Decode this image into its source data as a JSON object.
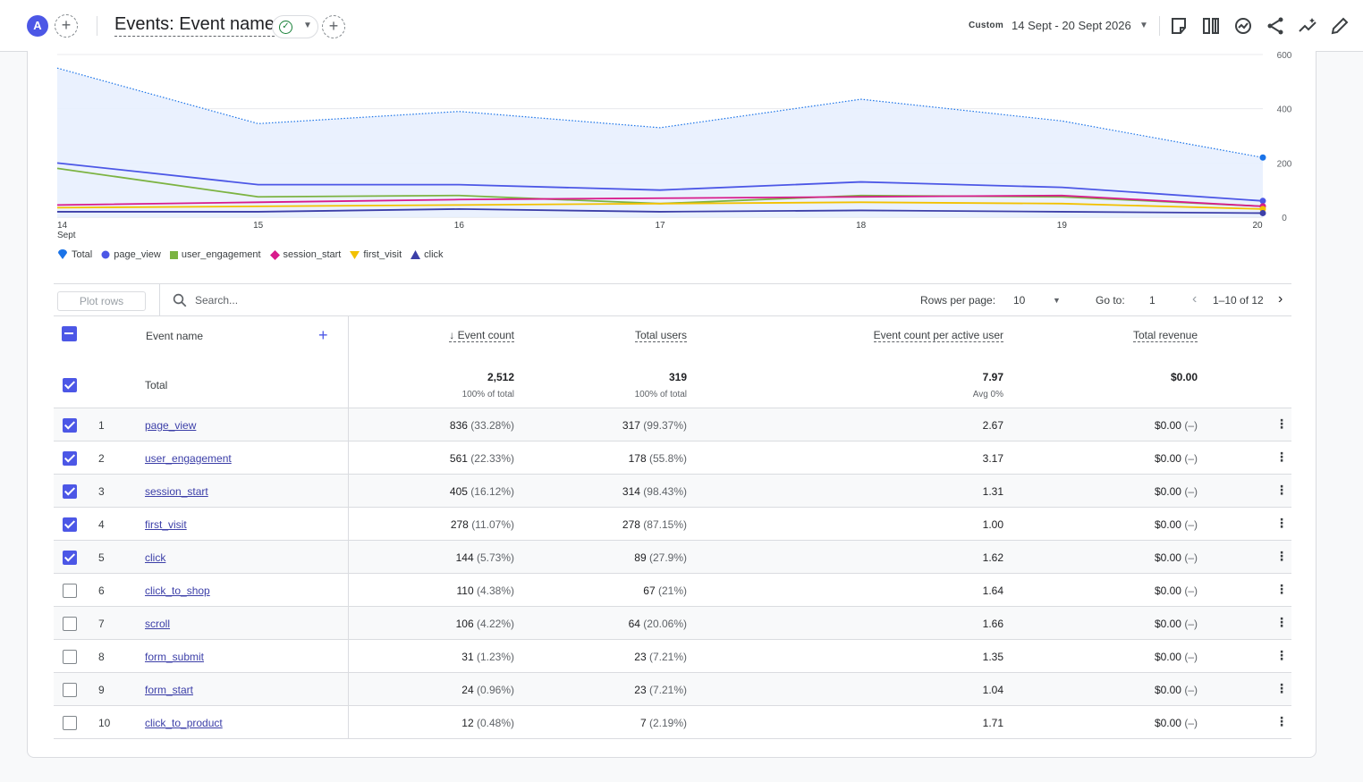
{
  "header": {
    "avatar_letter": "A",
    "title": "Events: Event name",
    "custom_label": "Custom",
    "date_range": "14 Sept - 20 Sept 2026"
  },
  "chart_data": {
    "type": "line",
    "x": [
      "14",
      "15",
      "16",
      "17",
      "18",
      "19",
      "20"
    ],
    "x_sub_label": "Sept",
    "ylim": [
      0,
      600
    ],
    "y_ticks": [
      "0",
      "200",
      "400",
      "600"
    ],
    "series": [
      {
        "name": "Total",
        "values": [
          550,
          345,
          390,
          330,
          435,
          355,
          220
        ],
        "color": "#1a73e8",
        "style": "dotted-area"
      },
      {
        "name": "page_view",
        "values": [
          200,
          120,
          120,
          100,
          130,
          110,
          60
        ],
        "color": "#4c57e6"
      },
      {
        "name": "user_engagement",
        "values": [
          180,
          75,
          80,
          50,
          80,
          75,
          40
        ],
        "color": "#7cb342"
      },
      {
        "name": "session_start",
        "values": [
          45,
          55,
          65,
          70,
          75,
          80,
          40
        ],
        "color": "#d81b8c"
      },
      {
        "name": "first_visit",
        "values": [
          35,
          40,
          45,
          50,
          55,
          50,
          30
        ],
        "color": "#f2c100"
      },
      {
        "name": "click",
        "values": [
          20,
          20,
          30,
          20,
          25,
          20,
          15
        ],
        "color": "#3c3fa8"
      }
    ]
  },
  "legend": [
    {
      "label": "Total",
      "color": "#1a73e8",
      "marker": "pin"
    },
    {
      "label": "page_view",
      "color": "#4c57e6",
      "marker": "circle"
    },
    {
      "label": "user_engagement",
      "color": "#7cb342",
      "marker": "square"
    },
    {
      "label": "session_start",
      "color": "#d81b8c",
      "marker": "diamond"
    },
    {
      "label": "first_visit",
      "color": "#f2c100",
      "marker": "triangle-down"
    },
    {
      "label": "click",
      "color": "#3c3fa8",
      "marker": "triangle-up"
    }
  ],
  "toolbar": {
    "plot_rows": "Plot rows",
    "search_placeholder": "Search...",
    "rows_per_page_label": "Rows per page:",
    "rows_per_page": "10",
    "goto_label": "Go to:",
    "goto_value": "1",
    "pagination": "1–10 of 12"
  },
  "table": {
    "headers": {
      "event_name": "Event name",
      "event_count": "Event count",
      "total_users": "Total users",
      "per_user": "Event count per active user",
      "revenue": "Total revenue"
    },
    "totals": {
      "label": "Total",
      "event_count": "2,512",
      "event_count_sub": "100% of total",
      "total_users": "319",
      "total_users_sub": "100% of total",
      "per_user": "7.97",
      "per_user_sub": "Avg 0%",
      "revenue": "$0.00"
    },
    "rows": [
      {
        "idx": "1",
        "name": "page_view",
        "count": "836",
        "count_pct": "(33.28%)",
        "users": "317",
        "users_pct": "(99.37%)",
        "per_user": "2.67",
        "revenue": "$0.00",
        "revenue_pct": "(–)",
        "checked": true
      },
      {
        "idx": "2",
        "name": "user_engagement",
        "count": "561",
        "count_pct": "(22.33%)",
        "users": "178",
        "users_pct": "(55.8%)",
        "per_user": "3.17",
        "revenue": "$0.00",
        "revenue_pct": "(–)",
        "checked": true
      },
      {
        "idx": "3",
        "name": "session_start",
        "count": "405",
        "count_pct": "(16.12%)",
        "users": "314",
        "users_pct": "(98.43%)",
        "per_user": "1.31",
        "revenue": "$0.00",
        "revenue_pct": "(–)",
        "checked": true
      },
      {
        "idx": "4",
        "name": "first_visit",
        "count": "278",
        "count_pct": "(11.07%)",
        "users": "278",
        "users_pct": "(87.15%)",
        "per_user": "1.00",
        "revenue": "$0.00",
        "revenue_pct": "(–)",
        "checked": true
      },
      {
        "idx": "5",
        "name": "click",
        "count": "144",
        "count_pct": "(5.73%)",
        "users": "89",
        "users_pct": "(27.9%)",
        "per_user": "1.62",
        "revenue": "$0.00",
        "revenue_pct": "(–)",
        "checked": true
      },
      {
        "idx": "6",
        "name": "click_to_shop",
        "count": "110",
        "count_pct": "(4.38%)",
        "users": "67",
        "users_pct": "(21%)",
        "per_user": "1.64",
        "revenue": "$0.00",
        "revenue_pct": "(–)",
        "checked": false
      },
      {
        "idx": "7",
        "name": "scroll",
        "count": "106",
        "count_pct": "(4.22%)",
        "users": "64",
        "users_pct": "(20.06%)",
        "per_user": "1.66",
        "revenue": "$0.00",
        "revenue_pct": "(–)",
        "checked": false
      },
      {
        "idx": "8",
        "name": "form_submit",
        "count": "31",
        "count_pct": "(1.23%)",
        "users": "23",
        "users_pct": "(7.21%)",
        "per_user": "1.35",
        "revenue": "$0.00",
        "revenue_pct": "(–)",
        "checked": false
      },
      {
        "idx": "9",
        "name": "form_start",
        "count": "24",
        "count_pct": "(0.96%)",
        "users": "23",
        "users_pct": "(7.21%)",
        "per_user": "1.04",
        "revenue": "$0.00",
        "revenue_pct": "(–)",
        "checked": false
      },
      {
        "idx": "10",
        "name": "click_to_product",
        "count": "12",
        "count_pct": "(0.48%)",
        "users": "7",
        "users_pct": "(2.19%)",
        "per_user": "1.71",
        "revenue": "$0.00",
        "revenue_pct": "(–)",
        "checked": false
      }
    ]
  }
}
